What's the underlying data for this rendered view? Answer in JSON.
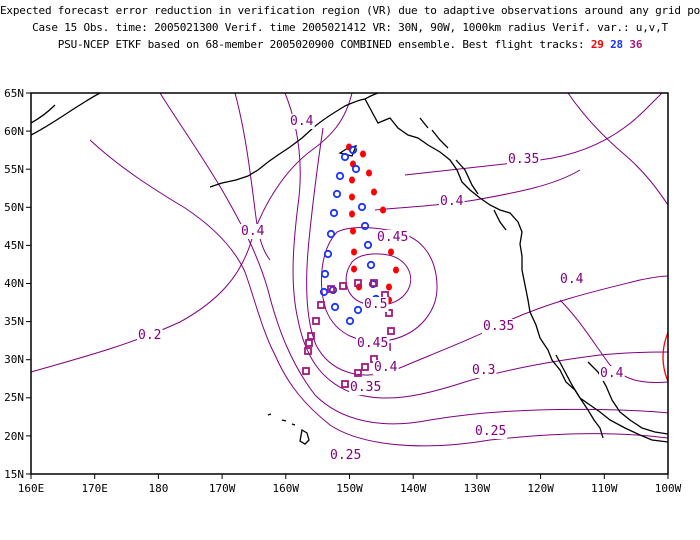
{
  "header": {
    "line1": "Expected forecast error reduction in verification region (VR) due to adaptive observations around any grid point.",
    "line2": "Case 15  Obs. time: 2005021300  Verif. time 2005021412  VR: 30N, 90W, 1000km radius  Verif. var.: u,v,T",
    "line3_prefix": "PSU-NCEP ETKF based on 68-member 2005020900 COMBINED ensemble.  Best flight tracks:",
    "track_red": "29",
    "track_blue": "28",
    "track_purple": "36"
  },
  "map": {
    "lon_labels": [
      "160E",
      "170E",
      "180",
      "170W",
      "160W",
      "150W",
      "140W",
      "130W",
      "120W",
      "110W",
      "100W"
    ],
    "lat_labels": [
      "65N",
      "60N",
      "55N",
      "50N",
      "45N",
      "40N",
      "35N",
      "30N",
      "25N",
      "20N",
      "15N"
    ],
    "contour_labels": [
      "0.4",
      "0.35",
      "0.4",
      "0.4",
      "0.45",
      "0.5",
      "0.4",
      "0.2",
      "0.35",
      "0.45",
      "0.4",
      "0.4",
      "0.3",
      "0.35",
      "0.25",
      "0.25"
    ],
    "contour_color": "#800080",
    "coast_color": "#000000",
    "vr_circle_color": "#ff0000",
    "track_colors": {
      "red": "#ff0000",
      "blue": "#1a33ff",
      "purple": "#a01a7d"
    }
  }
}
